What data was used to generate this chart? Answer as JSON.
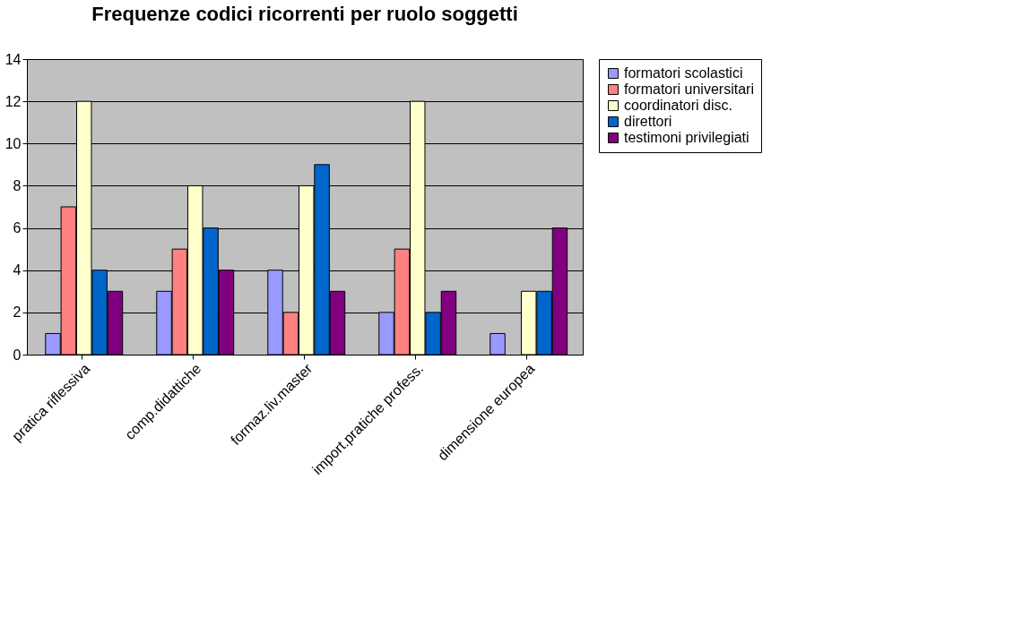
{
  "chart_data": {
    "type": "bar",
    "title": "Frequenze codici ricorrenti per ruolo soggetti",
    "categories": [
      "pratica riflessiva",
      "comp.didattiche",
      "formaz.liv.master",
      "import.pratiche profess.",
      "dimensione europea"
    ],
    "series": [
      {
        "name": "formatori scolastici",
        "color": "#9999ff",
        "values": [
          1,
          3,
          4,
          2,
          1
        ]
      },
      {
        "name": "formatori universitari",
        "color": "#ff8080",
        "values": [
          7,
          5,
          2,
          5,
          null
        ]
      },
      {
        "name": "coordinatori disc.",
        "color": "#ffffcc",
        "values": [
          12,
          8,
          8,
          12,
          3
        ]
      },
      {
        "name": "direttori",
        "color": "#0066cc",
        "values": [
          4,
          6,
          9,
          2,
          3
        ]
      },
      {
        "name": "testimoni privilegiati",
        "color": "#800080",
        "values": [
          3,
          4,
          3,
          3,
          6
        ]
      }
    ],
    "ylim": [
      0,
      14
    ],
    "yticks": [
      0,
      2,
      4,
      6,
      8,
      10,
      12,
      14
    ],
    "grid": "y",
    "legend": "right"
  }
}
